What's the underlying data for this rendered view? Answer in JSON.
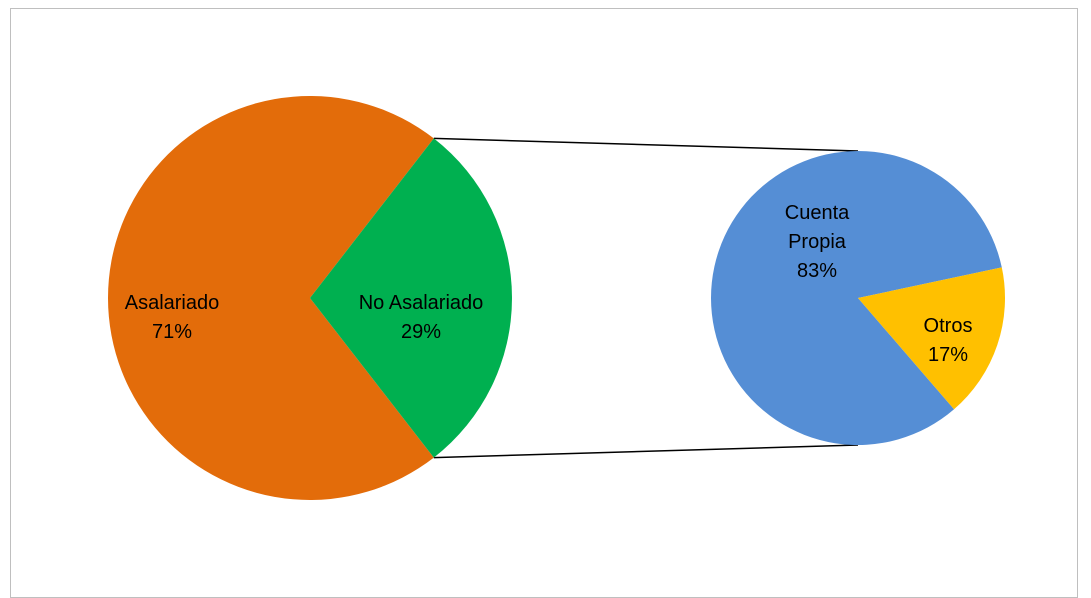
{
  "chart_data": {
    "type": "pie",
    "subtype": "pie-of-pie",
    "main": {
      "slices": [
        {
          "label": "Asalariado",
          "value": 71,
          "pct_label": "71%",
          "color": "#E36C0A"
        },
        {
          "label": "No Asalariado",
          "value": 29,
          "pct_label": "29%",
          "color": "#00B050"
        }
      ],
      "exploded_slice": "No Asalariado"
    },
    "secondary": {
      "slices": [
        {
          "label_lines": [
            "Cuenta",
            "Propia"
          ],
          "value": 83,
          "pct_label": "83%",
          "color": "#558ED5"
        },
        {
          "label_lines": [
            "Otros"
          ],
          "value": 17,
          "pct_label": "17%",
          "color": "#FFC000"
        }
      ]
    },
    "connector_color": "#000000",
    "frame_border_color": "#BFBFBF"
  }
}
